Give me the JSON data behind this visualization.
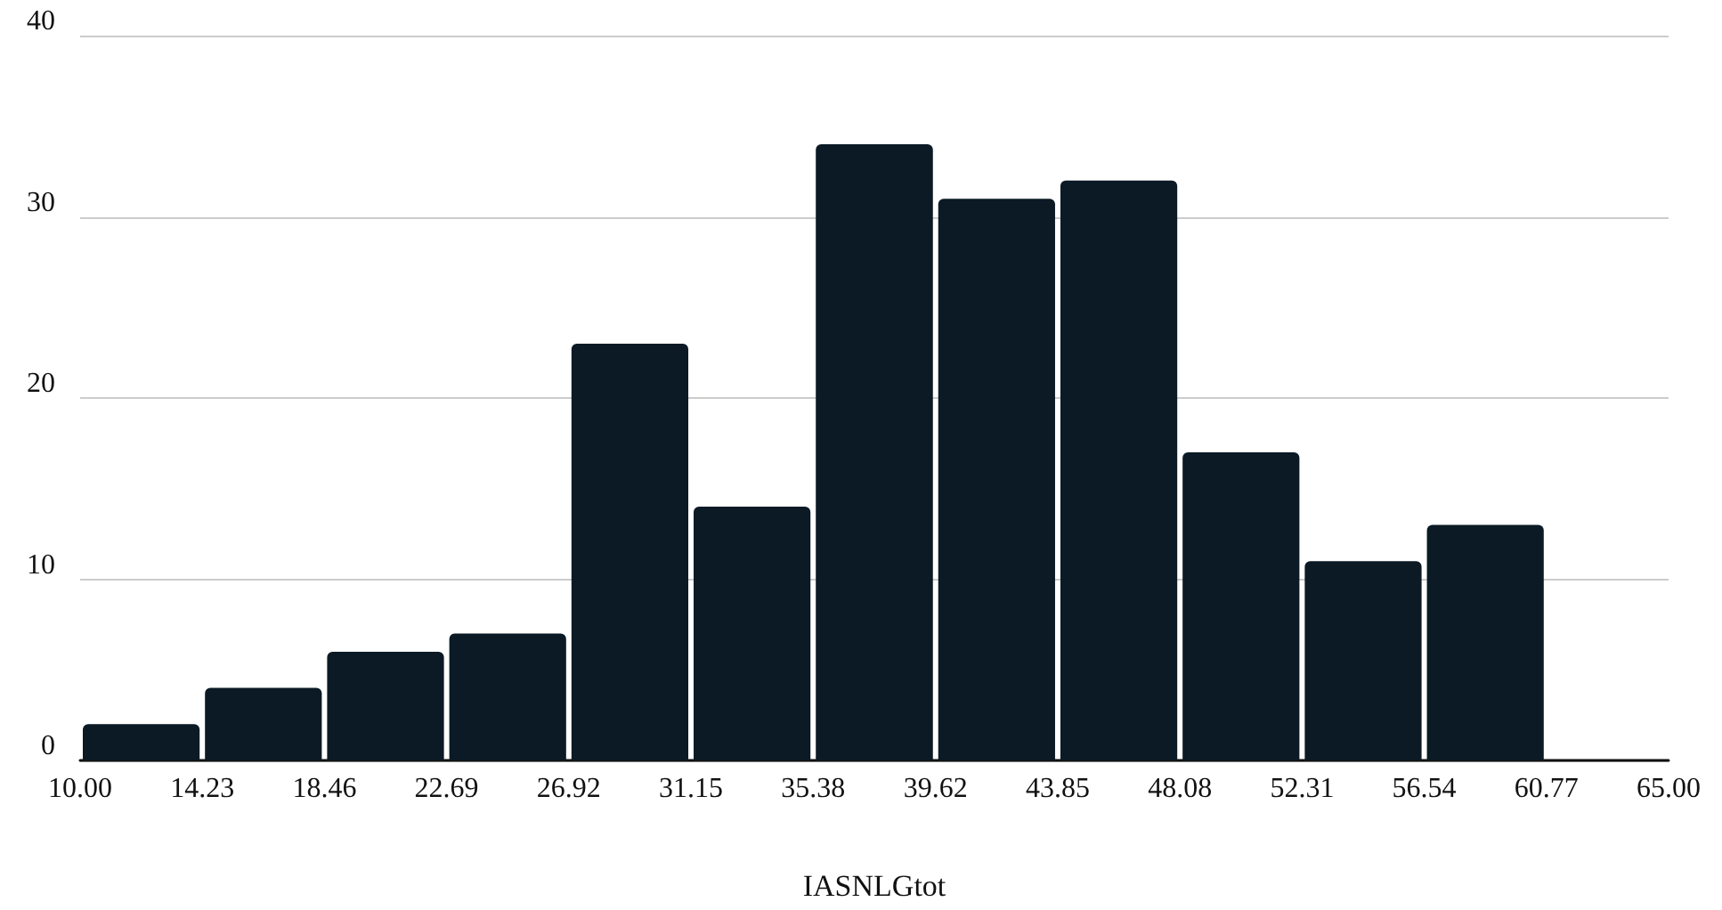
{
  "chart_data": {
    "type": "histogram",
    "xlabel": "IASNLGtot",
    "bins": [
      10,
      14.23,
      18.46,
      22.69,
      26.92,
      31.15,
      35.38,
      39.62,
      43.85,
      48.08,
      52.31,
      56.54,
      60.77,
      65
    ],
    "values": [
      2,
      4,
      6,
      7,
      23,
      14,
      34,
      31,
      32,
      17,
      11,
      13,
      0
    ],
    "color": "#0b1a25",
    "xlim": [
      10,
      65
    ],
    "xticks": [
      {
        "value": 10,
        "label": "10.00"
      },
      14.23,
      18.46,
      22.69,
      26.92,
      31.15,
      35.38,
      39.62,
      43.85,
      48.08,
      52.31,
      56.54,
      60.77,
      {
        "value": 65,
        "label": "65.00"
      }
    ],
    "ylim": [
      0,
      40
    ],
    "yticks": [
      0,
      10,
      20,
      30,
      40
    ],
    "grid": "y"
  }
}
